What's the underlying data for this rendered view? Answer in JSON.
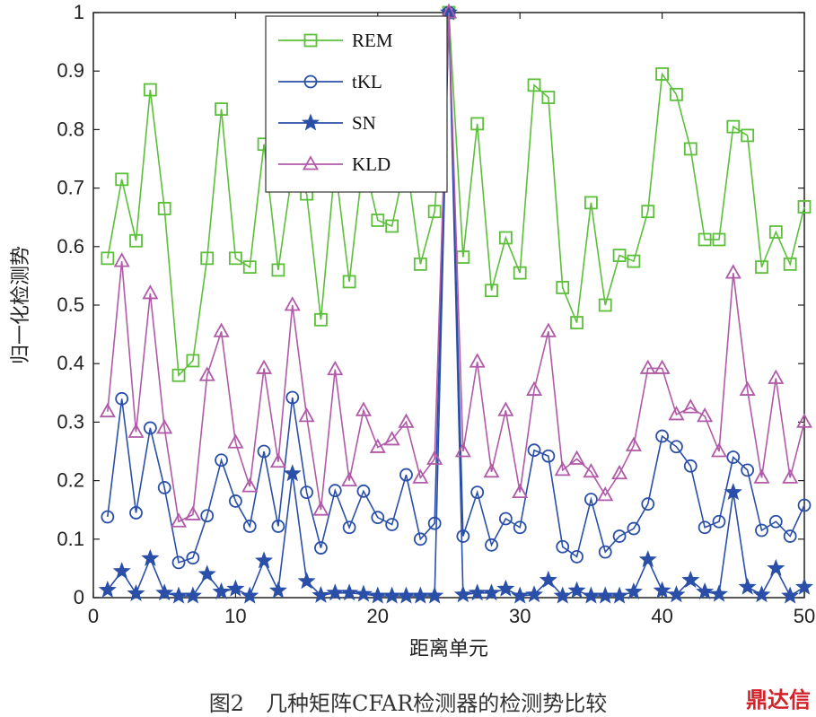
{
  "chart_data": {
    "type": "line",
    "title": "",
    "xlabel": "距离单元",
    "ylabel": "归一化检测势",
    "xlim": [
      0,
      50
    ],
    "ylim": [
      0,
      1
    ],
    "xticks": [
      0,
      10,
      20,
      30,
      40,
      50
    ],
    "yticks": [
      0,
      0.1,
      0.2,
      0.3,
      0.4,
      0.5,
      0.6,
      0.7,
      0.8,
      0.9,
      1
    ],
    "x": [
      1,
      2,
      3,
      4,
      5,
      6,
      7,
      8,
      9,
      10,
      11,
      12,
      13,
      14,
      15,
      16,
      17,
      18,
      19,
      20,
      21,
      22,
      23,
      24,
      25,
      26,
      27,
      28,
      29,
      30,
      31,
      32,
      33,
      34,
      35,
      36,
      37,
      38,
      39,
      40,
      41,
      42,
      43,
      44,
      45,
      46,
      47,
      48,
      49,
      50
    ],
    "legend_position": "top-center",
    "grid": false,
    "series": [
      {
        "name": "REM",
        "color": "#5cbf3a",
        "marker": "square",
        "values": [
          0.58,
          0.715,
          0.61,
          0.868,
          0.665,
          0.38,
          0.405,
          0.58,
          0.835,
          0.58,
          0.565,
          0.775,
          0.56,
          0.73,
          0.69,
          0.475,
          0.74,
          0.54,
          0.75,
          0.645,
          0.635,
          0.75,
          0.57,
          0.66,
          1.0,
          0.582,
          0.81,
          0.525,
          0.615,
          0.555,
          0.876,
          0.855,
          0.53,
          0.47,
          0.675,
          0.5,
          0.585,
          0.575,
          0.66,
          0.895,
          0.86,
          0.767,
          0.612,
          0.612,
          0.805,
          0.79,
          0.565,
          0.625,
          0.57,
          0.668
        ]
      },
      {
        "name": "tKL",
        "color": "#2a4fa8",
        "marker": "circle",
        "values": [
          0.138,
          0.34,
          0.145,
          0.29,
          0.188,
          0.06,
          0.068,
          0.14,
          0.235,
          0.165,
          0.122,
          0.25,
          0.122,
          0.342,
          0.18,
          0.085,
          0.183,
          0.12,
          0.182,
          0.137,
          0.125,
          0.21,
          0.1,
          0.127,
          1.0,
          0.105,
          0.18,
          0.09,
          0.135,
          0.12,
          0.252,
          0.242,
          0.087,
          0.07,
          0.168,
          0.078,
          0.105,
          0.118,
          0.16,
          0.276,
          0.258,
          0.225,
          0.12,
          0.13,
          0.24,
          0.218,
          0.115,
          0.13,
          0.105,
          0.158
        ]
      },
      {
        "name": "SN",
        "color": "#2a4fa8",
        "marker": "star",
        "values": [
          0.013,
          0.045,
          0.007,
          0.067,
          0.008,
          0.003,
          0.003,
          0.04,
          0.01,
          0.015,
          0.003,
          0.063,
          0.012,
          0.212,
          0.028,
          0.004,
          0.008,
          0.008,
          0.006,
          0.003,
          0.003,
          0.003,
          0.003,
          0.003,
          1.0,
          0.005,
          0.008,
          0.008,
          0.015,
          0.003,
          0.005,
          0.03,
          0.003,
          0.012,
          0.003,
          0.003,
          0.003,
          0.01,
          0.065,
          0.012,
          0.005,
          0.03,
          0.01,
          0.006,
          0.18,
          0.018,
          0.005,
          0.05,
          0.003,
          0.018
        ]
      },
      {
        "name": "KLD",
        "color": "#b05aa8",
        "marker": "triangle",
        "values": [
          0.318,
          0.575,
          0.283,
          0.52,
          0.29,
          0.13,
          0.142,
          0.38,
          0.455,
          0.265,
          0.19,
          0.392,
          0.232,
          0.5,
          0.31,
          0.15,
          0.39,
          0.2,
          0.32,
          0.257,
          0.27,
          0.3,
          0.205,
          0.237,
          1.0,
          0.25,
          0.403,
          0.215,
          0.32,
          0.18,
          0.355,
          0.455,
          0.218,
          0.237,
          0.215,
          0.175,
          0.212,
          0.26,
          0.392,
          0.392,
          0.313,
          0.325,
          0.31,
          0.25,
          0.555,
          0.355,
          0.205,
          0.375,
          0.205,
          0.3
        ]
      }
    ]
  },
  "caption": "图2　几种矩阵CFAR检测器的检测势比较",
  "watermark": "鼎达信"
}
